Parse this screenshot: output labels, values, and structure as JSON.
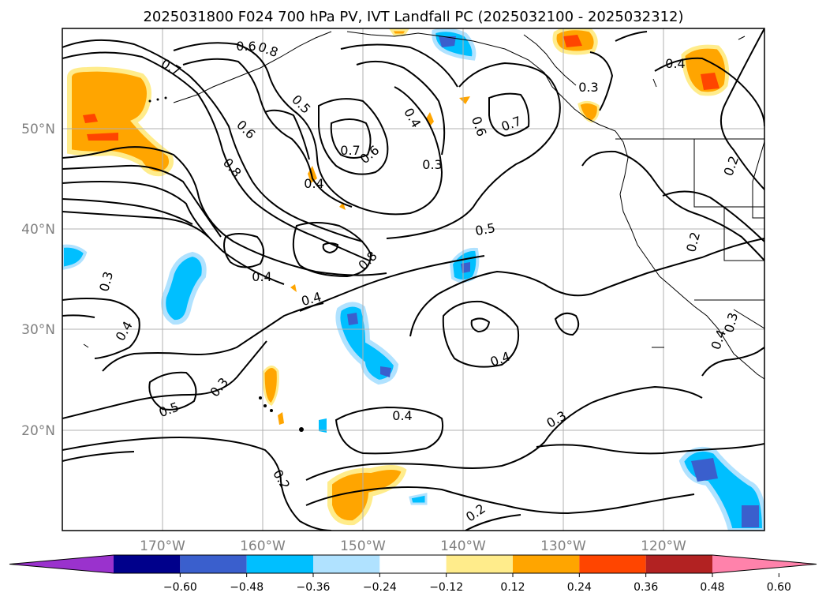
{
  "title": "2025031800 F024 700 hPa PV, IVT Landfall PC (2025032100 - 2025032312)",
  "map": {
    "lon_range": [
      -180,
      -110
    ],
    "lat_range": [
      10,
      60
    ],
    "lat_labels": [
      "50°N",
      "40°N",
      "30°N",
      "20°N"
    ],
    "lon_labels": [
      "170°W",
      "160°W",
      "150°W",
      "140°W",
      "130°W",
      "120°W"
    ],
    "grid": true
  },
  "colorbar": {
    "orientation": "horizontal",
    "extend": "both",
    "levels": [
      -0.6,
      -0.48,
      -0.36,
      -0.24,
      -0.12,
      0.12,
      0.24,
      0.36,
      0.48,
      0.6
    ],
    "tick_labels": [
      "−0.60",
      "−0.48",
      "−0.36",
      "−0.24",
      "−0.12",
      "0.12",
      "0.24",
      "0.36",
      "0.48",
      "0.60"
    ],
    "colors": [
      "#9a32cd",
      "#00008b",
      "#3a5fcd",
      "#00bfff",
      "#b0e2ff",
      "#ffffff",
      "#ffec8b",
      "#ffa500",
      "#ff4500",
      "#b22222",
      "#ff82ab"
    ]
  },
  "contour_labels": [
    "0.7",
    "0.8",
    "0.5",
    "0.6",
    "0.4",
    "0.7",
    "0.6",
    "0.4",
    "0.6",
    "0.7",
    "0.3",
    "0.3",
    "0.4",
    "0.2",
    "0.6",
    "0.8",
    "0.4",
    "0.5",
    "0.8",
    "0.4",
    "0.3",
    "0.4",
    "0.2",
    "0.4",
    "0.4",
    "0.3",
    "0.5",
    "0.4",
    "0.3",
    "0.2",
    "0.2",
    "0.3"
  ]
}
